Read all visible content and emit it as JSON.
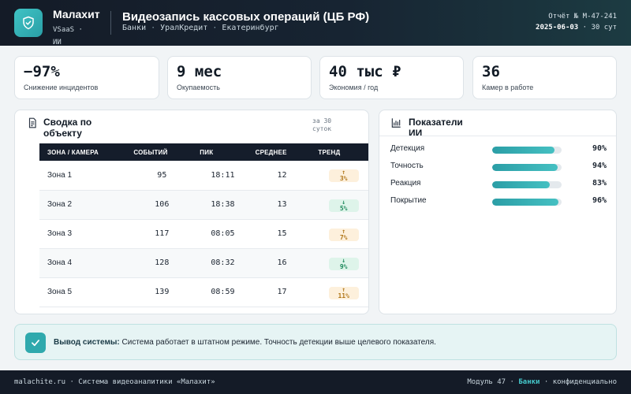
{
  "header": {
    "brand": "Малахит",
    "brand_sub": "VSaaS · ИИ",
    "title": "Видеозапись кассовых операций (ЦБ РФ)",
    "crumbs": [
      "Банки",
      "УралКредит",
      "Екатеринбург"
    ],
    "report_label": "Отчёт № М-47-241",
    "report_date": "2025-06-03",
    "report_period": "· 30 сут"
  },
  "kpis": [
    {
      "value": "−97%",
      "label": "Снижение инцидентов"
    },
    {
      "value": "9 мес",
      "label": "Окупаемость"
    },
    {
      "value": "40 тыс ₽",
      "label": "Экономия / год"
    },
    {
      "value": "36",
      "label": "Камер в работе"
    }
  ],
  "summary": {
    "title": "Сводка по объекту",
    "period": "за 30 суток",
    "columns": [
      "ЗОНА / КАМЕРА",
      "СОБЫТИЙ",
      "ПИК",
      "СРЕДНЕЕ",
      "ТРЕНД"
    ],
    "rows": [
      {
        "zone": "Зона 1",
        "events": "95",
        "peak": "18:11",
        "avg": "12",
        "trend_arrow": "↑",
        "trend": "3%",
        "dir": "up"
      },
      {
        "zone": "Зона 2",
        "events": "106",
        "peak": "18:38",
        "avg": "13",
        "trend_arrow": "↓",
        "trend": "5%",
        "dir": "down"
      },
      {
        "zone": "Зона 3",
        "events": "117",
        "peak": "08:05",
        "avg": "15",
        "trend_arrow": "↑",
        "trend": "7%",
        "dir": "up"
      },
      {
        "zone": "Зона 4",
        "events": "128",
        "peak": "08:32",
        "avg": "16",
        "trend_arrow": "↓",
        "trend": "9%",
        "dir": "down"
      },
      {
        "zone": "Зона 5",
        "events": "139",
        "peak": "08:59",
        "avg": "17",
        "trend_arrow": "↑",
        "trend": "11%",
        "dir": "up"
      }
    ]
  },
  "ai": {
    "title": "Показатели ИИ",
    "metrics": [
      {
        "label": "Детекция",
        "value": "90%",
        "fraction": 0.9
      },
      {
        "label": "Точность",
        "value": "94%",
        "fraction": 0.94
      },
      {
        "label": "Реакция",
        "value": "83%",
        "fraction": 0.83
      },
      {
        "label": "Покрытие",
        "value": "96%",
        "fraction": 0.96
      }
    ]
  },
  "conclusion": {
    "label": "Вывод системы:",
    "text": "Система работает в штатном режиме. Точность детекции выше целевого показателя."
  },
  "footer": {
    "left": "malachite.ru · Система видеоаналитики «Малахит»",
    "module": "Модуль 47 ·",
    "sector": "Банки",
    "conf": "· конфиденциально"
  }
}
